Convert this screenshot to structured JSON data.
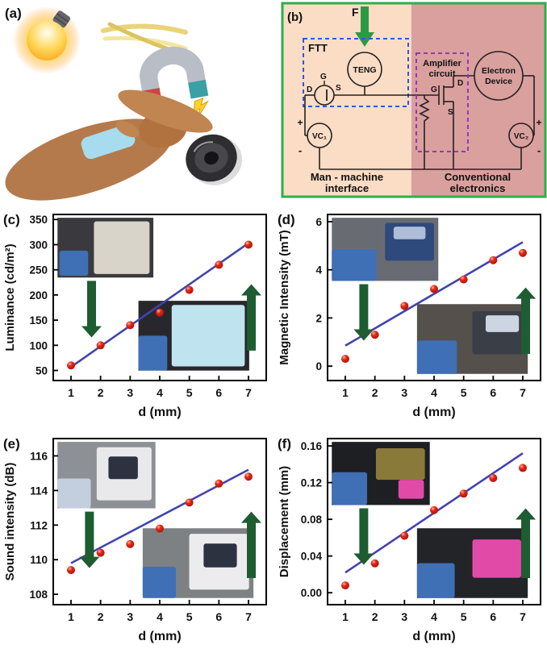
{
  "panel_a": {
    "label": "(a)"
  },
  "panel_b": {
    "label": "(b)",
    "force": "F",
    "ftt": "FTT",
    "teng": "TENG",
    "amplifier_line1": "Amplifier",
    "amplifier_line2": "circuit",
    "electron_line1": "Electron",
    "electron_line2": "Device",
    "vc1": "VC₁",
    "vc2": "VC₂",
    "g": "G",
    "d": "D",
    "s": "S",
    "plus": "+",
    "minus": "-",
    "left_line1": "Man - machine",
    "left_line2": "interface",
    "right_line1": "Conventional",
    "right_line2": "electronics",
    "colors": {
      "border": "#2fae4c",
      "left_bg": "#fbdcc4",
      "right_bg": "#d9a09e",
      "ftt_blue": "#3355dd",
      "amp_purple": "#9933bb",
      "arrow_green": "#2c9a44"
    }
  },
  "chart_style": {
    "point_color": "#e42613",
    "line_color": "#4343ae",
    "arrow_color": "#1e5c31"
  },
  "chart_data": [
    {
      "id": "c",
      "panel_label": "(c)",
      "type": "scatter",
      "xlabel": "d (mm)",
      "ylabel": "Luminance (cd/m²)",
      "x": [
        1,
        2,
        3,
        4,
        5,
        6,
        7
      ],
      "values": [
        60,
        100,
        140,
        165,
        210,
        260,
        300
      ],
      "fit_line": {
        "x": [
          1,
          7
        ],
        "y": [
          57,
          303
        ]
      },
      "xlim": [
        0.4,
        7.6
      ],
      "ylim": [
        30,
        360
      ],
      "xticks": [
        1,
        2,
        3,
        4,
        5,
        6,
        7
      ],
      "xtick_labels": [
        "1",
        "2",
        "3",
        "4",
        "5",
        "6",
        "7"
      ],
      "ytick_values": [
        50,
        100,
        150,
        200,
        250,
        300,
        350
      ],
      "ytick_labels": [
        "50",
        "100",
        "150",
        "200",
        "250",
        "300",
        "350"
      ],
      "legend": "none",
      "grid": false,
      "insets": [
        {
          "x": 0.02,
          "y": 0.02,
          "w": 0.45,
          "h": 0.36,
          "bg": "#3a3a3e",
          "blobs": [
            {
              "x": 0.38,
              "y": 0.06,
              "w": 0.58,
              "h": 0.88,
              "c": "#d8d4ca"
            },
            {
              "x": 0.02,
              "y": 0.55,
              "w": 0.3,
              "h": 0.42,
              "c": "#3f6fb5"
            }
          ]
        },
        {
          "x": 0.4,
          "y": 0.52,
          "w": 0.52,
          "h": 0.42,
          "bg": "#28282c",
          "blobs": [
            {
              "x": 0.3,
              "y": 0.06,
              "w": 0.66,
              "h": 0.88,
              "c": "#bfe4f0"
            },
            {
              "x": 0.0,
              "y": 0.5,
              "w": 0.26,
              "h": 0.5,
              "c": "#3f6fb5"
            }
          ]
        }
      ],
      "arrows": [
        {
          "fx": 0.18,
          "tail": 0.4,
          "tip": 0.74
        },
        {
          "fx": 0.93,
          "tail": 0.82,
          "tip": 0.42
        }
      ]
    },
    {
      "id": "d",
      "panel_label": "(d)",
      "type": "scatter",
      "xlabel": "d (mm)",
      "ylabel": "Magnetic Intensity (mT)",
      "x": [
        1,
        2,
        3,
        4,
        5,
        6,
        7
      ],
      "values": [
        0.3,
        1.3,
        2.5,
        3.2,
        3.6,
        4.4,
        4.7
      ],
      "fit_line": {
        "x": [
          1,
          7
        ],
        "y": [
          0.85,
          5.15
        ]
      },
      "xlim": [
        0.4,
        7.6
      ],
      "ylim": [
        -0.6,
        6.3
      ],
      "xticks": [
        1,
        2,
        3,
        4,
        5,
        6,
        7
      ],
      "xtick_labels": [
        "1",
        "2",
        "3",
        "4",
        "5",
        "6",
        "7"
      ],
      "ytick_values": [
        0,
        2,
        4,
        6
      ],
      "ytick_labels": [
        "0",
        "2",
        "4",
        "6"
      ],
      "legend": "none",
      "grid": false,
      "insets": [
        {
          "x": 0.02,
          "y": 0.02,
          "w": 0.5,
          "h": 0.38,
          "bg": "#686c72",
          "blobs": [
            {
              "x": 0.5,
              "y": 0.08,
              "w": 0.46,
              "h": 0.6,
              "c": "#2e4a7c"
            },
            {
              "x": 0.58,
              "y": 0.14,
              "w": 0.3,
              "h": 0.2,
              "c": "#aebdd8"
            },
            {
              "x": 0.0,
              "y": 0.5,
              "w": 0.42,
              "h": 0.5,
              "c": "#3f6fb5"
            }
          ]
        },
        {
          "x": 0.42,
          "y": 0.54,
          "w": 0.52,
          "h": 0.42,
          "bg": "#55504b",
          "blobs": [
            {
              "x": 0.5,
              "y": 0.1,
              "w": 0.46,
              "h": 0.62,
              "c": "#3a3e46"
            },
            {
              "x": 0.62,
              "y": 0.16,
              "w": 0.3,
              "h": 0.24,
              "c": "#cdd5e2"
            },
            {
              "x": 0.0,
              "y": 0.52,
              "w": 0.36,
              "h": 0.48,
              "c": "#3f6fb5"
            }
          ]
        }
      ],
      "arrows": [
        {
          "fx": 0.17,
          "tail": 0.42,
          "tip": 0.76
        },
        {
          "fx": 0.93,
          "tail": 0.84,
          "tip": 0.44
        }
      ]
    },
    {
      "id": "e",
      "panel_label": "(e)",
      "type": "scatter",
      "xlabel": "d (mm)",
      "ylabel": "Sound intensity (dB)",
      "x": [
        1,
        2,
        3,
        4,
        5,
        6,
        7
      ],
      "values": [
        109.4,
        110.4,
        110.9,
        111.8,
        113.3,
        114.4,
        114.8
      ],
      "fit_line": {
        "x": [
          1,
          7
        ],
        "y": [
          109.8,
          115.2
        ]
      },
      "xlim": [
        0.4,
        7.6
      ],
      "ylim": [
        107.4,
        117
      ],
      "xticks": [
        1,
        2,
        3,
        4,
        5,
        6,
        7
      ],
      "xtick_labels": [
        "1",
        "2",
        "3",
        "4",
        "5",
        "6",
        "7"
      ],
      "ytick_values": [
        108,
        110,
        112,
        114,
        116
      ],
      "ytick_labels": [
        "108",
        "110",
        "112",
        "114",
        "116"
      ],
      "legend": "none",
      "grid": false,
      "insets": [
        {
          "x": 0.02,
          "y": 0.02,
          "w": 0.46,
          "h": 0.4,
          "bg": "#8d9094",
          "blobs": [
            {
              "x": 0.4,
              "y": 0.08,
              "w": 0.56,
              "h": 0.8,
              "c": "#e9e9eb"
            },
            {
              "x": 0.52,
              "y": 0.22,
              "w": 0.3,
              "h": 0.34,
              "c": "#2c3240"
            },
            {
              "x": 0.0,
              "y": 0.55,
              "w": 0.34,
              "h": 0.45,
              "c": "#c3cede"
            }
          ]
        },
        {
          "x": 0.42,
          "y": 0.54,
          "w": 0.52,
          "h": 0.42,
          "bg": "#7e8184",
          "blobs": [
            {
              "x": 0.42,
              "y": 0.08,
              "w": 0.54,
              "h": 0.8,
              "c": "#ececee"
            },
            {
              "x": 0.55,
              "y": 0.22,
              "w": 0.3,
              "h": 0.34,
              "c": "#2c3240"
            },
            {
              "x": 0.0,
              "y": 0.55,
              "w": 0.3,
              "h": 0.45,
              "c": "#3f6fb5"
            }
          ]
        }
      ],
      "arrows": [
        {
          "fx": 0.17,
          "tail": 0.44,
          "tip": 0.78
        },
        {
          "fx": 0.93,
          "tail": 0.84,
          "tip": 0.44
        }
      ]
    },
    {
      "id": "f",
      "panel_label": "(f)",
      "type": "scatter",
      "xlabel": "d (mm)",
      "ylabel": "Displacement (mm)",
      "x": [
        1,
        2,
        3,
        4,
        5,
        6,
        7
      ],
      "values": [
        0.008,
        0.032,
        0.062,
        0.09,
        0.108,
        0.125,
        0.136
      ],
      "fit_line": {
        "x": [
          1,
          7
        ],
        "y": [
          0.022,
          0.152
        ]
      },
      "xlim": [
        0.4,
        7.6
      ],
      "ylim": [
        -0.013,
        0.168
      ],
      "xticks": [
        1,
        2,
        3,
        4,
        5,
        6,
        7
      ],
      "xtick_labels": [
        "1",
        "2",
        "3",
        "4",
        "5",
        "6",
        "7"
      ],
      "ytick_values": [
        0,
        0.04,
        0.08,
        0.12,
        0.16
      ],
      "ytick_labels": [
        "0.00",
        "0.04",
        "0.08",
        "0.12",
        "0.16"
      ],
      "legend": "none",
      "grid": false,
      "insets": [
        {
          "x": 0.02,
          "y": 0.02,
          "w": 0.46,
          "h": 0.38,
          "bg": "#1e1f23",
          "blobs": [
            {
              "x": 0.45,
              "y": 0.1,
              "w": 0.5,
              "h": 0.5,
              "c": "#8a7a3a"
            },
            {
              "x": 0.68,
              "y": 0.6,
              "w": 0.26,
              "h": 0.3,
              "c": "#e24aa8"
            },
            {
              "x": 0.0,
              "y": 0.48,
              "w": 0.36,
              "h": 0.52,
              "c": "#3f6fb5"
            }
          ]
        },
        {
          "x": 0.42,
          "y": 0.54,
          "w": 0.52,
          "h": 0.42,
          "bg": "#232428",
          "blobs": [
            {
              "x": 0.5,
              "y": 0.16,
              "w": 0.44,
              "h": 0.55,
              "c": "#e24aa8"
            },
            {
              "x": 0.0,
              "y": 0.5,
              "w": 0.34,
              "h": 0.5,
              "c": "#3f6fb5"
            }
          ]
        }
      ],
      "arrows": [
        {
          "fx": 0.17,
          "tail": 0.42,
          "tip": 0.76
        },
        {
          "fx": 0.93,
          "tail": 0.84,
          "tip": 0.42
        }
      ]
    }
  ]
}
